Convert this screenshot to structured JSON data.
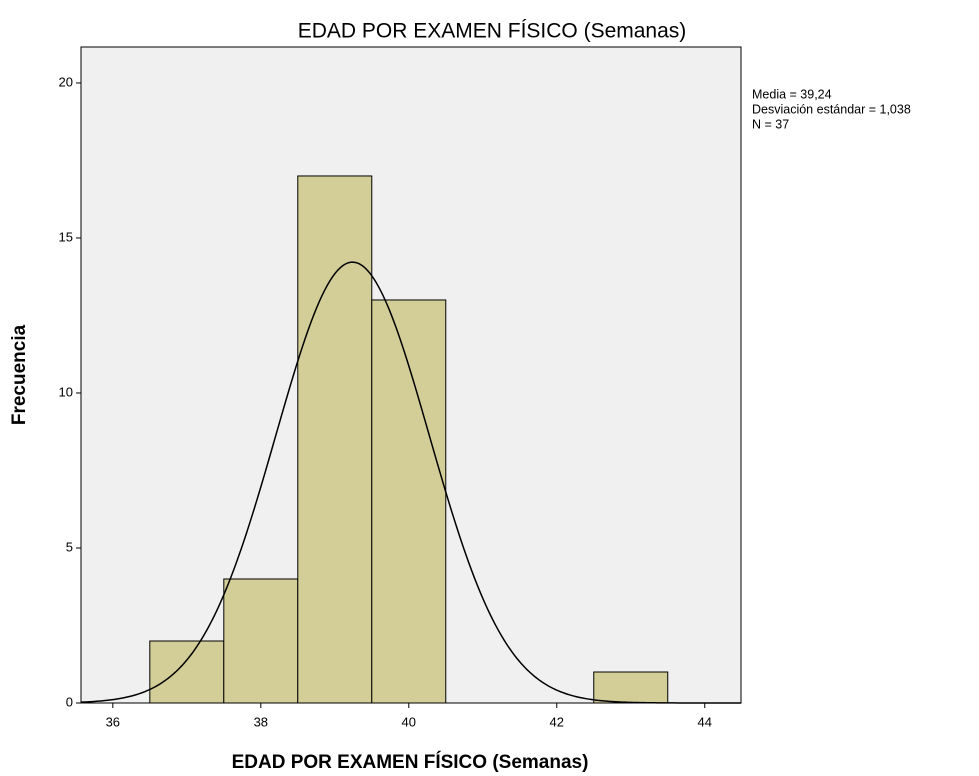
{
  "chart_data": {
    "type": "histogram",
    "title": "EDAD POR EXAMEN FÍSICO (Semanas)",
    "x_label": "EDAD POR EXAMEN FÍSICO (Semanas)",
    "y_label": "Frecuencia",
    "bins": [
      36.5,
      37.5,
      38.5,
      39.5,
      40.5,
      41.5,
      42.5,
      43.5
    ],
    "values": [
      2,
      4,
      17,
      13,
      0,
      0,
      1
    ],
    "color": "#d3ce97",
    "xlim": [
      35.57,
      44.49
    ],
    "xticks": [
      36,
      38,
      40,
      42,
      44
    ],
    "ylim": [
      0,
      21.16
    ],
    "yticks": [
      0,
      5,
      10,
      15,
      20
    ],
    "normal_curve": {
      "mean": 39.24,
      "sd": 1.038,
      "n": 37
    },
    "annotations": [
      "Media = 39,24",
      "Desviación estándar = 1,038",
      "N = 37"
    ]
  }
}
